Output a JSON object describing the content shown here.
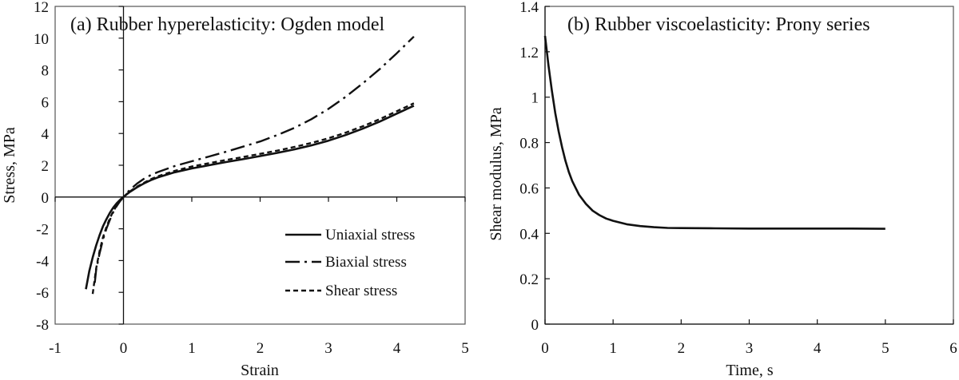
{
  "chart_data": [
    {
      "type": "line",
      "title": "(a) Rubber hyperelasticity: Ogden model",
      "xlabel": "Strain",
      "ylabel": "Stress, MPa",
      "xlim": [
        -1,
        5
      ],
      "ylim": [
        -8,
        12
      ],
      "xticks": [
        -1,
        0,
        1,
        2,
        3,
        4,
        5
      ],
      "yticks": [
        -8,
        -6,
        -4,
        -2,
        0,
        2,
        4,
        6,
        8,
        10,
        12
      ],
      "axes_through_origin": true,
      "grid": false,
      "legend_position": "bottom-right",
      "series": [
        {
          "name": "Uniaxial stress",
          "style": "solid",
          "x": [
            -0.55,
            -0.5,
            -0.45,
            -0.4,
            -0.35,
            -0.3,
            -0.25,
            -0.2,
            -0.15,
            -0.1,
            -0.05,
            0,
            0.05,
            0.1,
            0.2,
            0.3,
            0.4,
            0.5,
            0.75,
            1,
            1.25,
            1.5,
            1.75,
            2,
            2.25,
            2.5,
            2.75,
            3,
            3.25,
            3.5,
            3.75,
            4,
            4.25
          ],
          "y": [
            -5.8,
            -4.65,
            -3.8,
            -3.05,
            -2.4,
            -1.85,
            -1.4,
            -1.0,
            -0.67,
            -0.4,
            -0.18,
            0,
            0.18,
            0.34,
            0.62,
            0.86,
            1.06,
            1.23,
            1.56,
            1.8,
            2.0,
            2.2,
            2.38,
            2.58,
            2.78,
            3.0,
            3.25,
            3.55,
            3.9,
            4.3,
            4.75,
            5.25,
            5.75
          ]
        },
        {
          "name": "Biaxial stress",
          "style": "dash-dot",
          "x": [
            -0.42,
            -0.4,
            -0.35,
            -0.3,
            -0.25,
            -0.2,
            -0.15,
            -0.1,
            -0.05,
            0,
            0.05,
            0.1,
            0.2,
            0.3,
            0.4,
            0.5,
            0.75,
            1,
            1.25,
            1.5,
            1.75,
            2,
            2.25,
            2.5,
            2.75,
            3,
            3.25,
            3.5,
            3.75,
            4,
            4.25
          ],
          "y": [
            -5.4,
            -4.6,
            -3.55,
            -2.7,
            -2.0,
            -1.45,
            -0.95,
            -0.58,
            -0.26,
            0,
            0.25,
            0.48,
            0.85,
            1.15,
            1.38,
            1.57,
            1.95,
            2.25,
            2.55,
            2.85,
            3.17,
            3.5,
            3.9,
            4.35,
            4.9,
            5.55,
            6.3,
            7.15,
            8.05,
            9.05,
            10.1
          ]
        },
        {
          "name": "Shear stress",
          "style": "dashed",
          "x": [
            -0.45,
            -0.4,
            -0.35,
            -0.3,
            -0.25,
            -0.2,
            -0.15,
            -0.1,
            -0.05,
            0,
            0.05,
            0.1,
            0.2,
            0.3,
            0.4,
            0.5,
            0.75,
            1,
            1.25,
            1.5,
            1.75,
            2,
            2.25,
            2.5,
            2.75,
            3,
            3.25,
            3.5,
            3.75,
            4,
            4.25
          ],
          "y": [
            -6.1,
            -4.5,
            -3.4,
            -2.55,
            -1.9,
            -1.35,
            -0.9,
            -0.55,
            -0.25,
            0,
            0.2,
            0.37,
            0.66,
            0.9,
            1.12,
            1.3,
            1.65,
            1.92,
            2.13,
            2.33,
            2.52,
            2.72,
            2.92,
            3.15,
            3.4,
            3.7,
            4.05,
            4.45,
            4.9,
            5.4,
            5.9
          ]
        }
      ]
    },
    {
      "type": "line",
      "title": "(b) Rubber viscoelasticity: Prony series",
      "xlabel": "Time, s",
      "ylabel": "Shear modulus, MPa",
      "xlim": [
        0,
        6
      ],
      "ylim": [
        0,
        1.4
      ],
      "xticks": [
        0,
        1,
        2,
        3,
        4,
        5,
        6
      ],
      "yticks": [
        0,
        0.2,
        0.4,
        0.6,
        0.8,
        1,
        1.2,
        1.4
      ],
      "grid": false,
      "series": [
        {
          "name": "Shear modulus",
          "style": "solid",
          "x": [
            0,
            0.05,
            0.1,
            0.15,
            0.2,
            0.25,
            0.3,
            0.35,
            0.4,
            0.45,
            0.5,
            0.6,
            0.7,
            0.8,
            0.9,
            1,
            1.2,
            1.4,
            1.6,
            1.8,
            2,
            2.5,
            3,
            3.5,
            4,
            4.5,
            5
          ],
          "y": [
            1.27,
            1.14,
            1.03,
            0.93,
            0.85,
            0.78,
            0.72,
            0.67,
            0.63,
            0.6,
            0.57,
            0.53,
            0.5,
            0.48,
            0.465,
            0.455,
            0.44,
            0.432,
            0.427,
            0.424,
            0.423,
            0.422,
            0.421,
            0.421,
            0.421,
            0.421,
            0.42
          ]
        }
      ]
    }
  ]
}
